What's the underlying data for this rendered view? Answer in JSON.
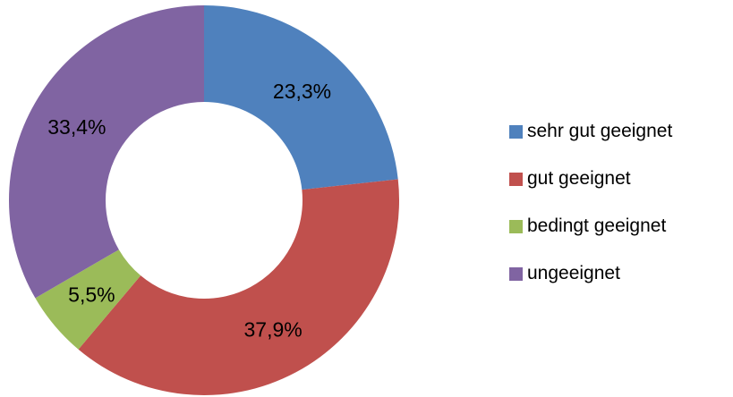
{
  "chart_data": {
    "type": "pie",
    "donut": true,
    "start_angle_deg": 0,
    "direction": "clockwise",
    "legend_position": "right",
    "slices": [
      {
        "name": "sehr gut geeignet",
        "value": 23.3,
        "label": "23,3%",
        "color": "#4F81BD"
      },
      {
        "name": "gut geeignet",
        "value": 37.9,
        "label": "37,9%",
        "color": "#C0504D"
      },
      {
        "name": "bedingt geeignet",
        "value": 5.5,
        "label": "5,5%",
        "color": "#9BBB59"
      },
      {
        "name": "ungeeignet",
        "value": 33.4,
        "label": "33,4%",
        "color": "#8064A2"
      }
    ]
  }
}
